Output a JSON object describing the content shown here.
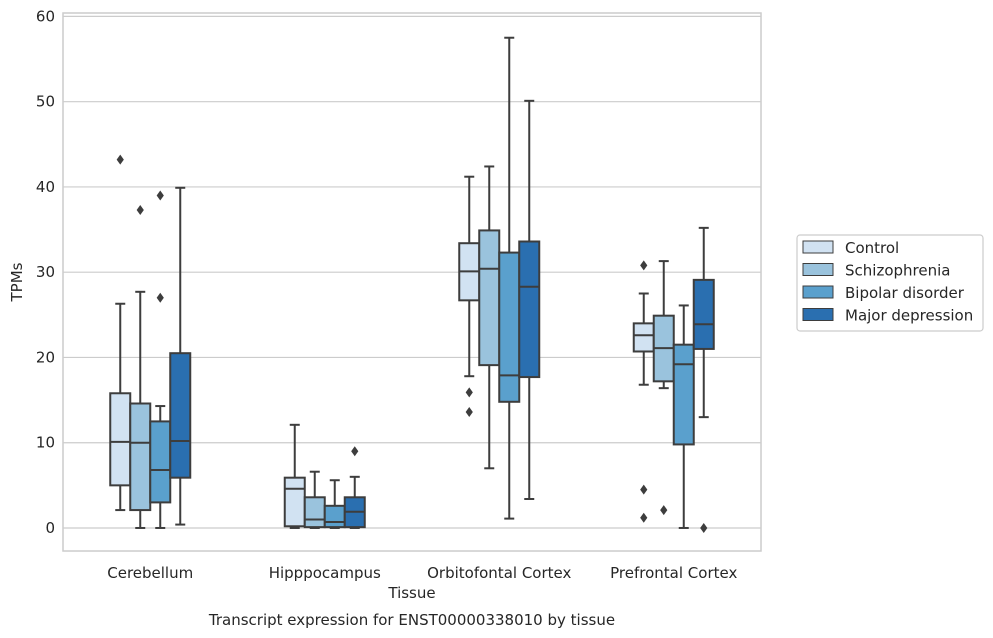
{
  "chart_data": {
    "type": "box",
    "xlabel": "Tissue",
    "ylabel": "TPMs",
    "caption": "Transcript expression for ENST00000338010 by tissue",
    "ylim": [
      -2.7,
      60.4
    ],
    "yticks": [
      0,
      10,
      20,
      30,
      40,
      50,
      60
    ],
    "grid": "horizontal",
    "legend_position": "right",
    "categories": [
      "Cerebellum",
      "Hipppocampus",
      "Orbitofontal Cortex",
      "Prefrontal Cortex"
    ],
    "series": [
      {
        "name": "Control",
        "color": "#d1e2f2",
        "boxes": [
          {
            "whislo": 2.1,
            "q1": 5.0,
            "med": 10.1,
            "q3": 15.8,
            "whishi": 26.3,
            "fliers": [
              43.2
            ]
          },
          {
            "whislo": 0.0,
            "q1": 0.2,
            "med": 4.6,
            "q3": 5.9,
            "whishi": 12.1,
            "fliers": []
          },
          {
            "whislo": 17.8,
            "q1": 26.7,
            "med": 30.1,
            "q3": 33.4,
            "whishi": 41.2,
            "fliers": [
              15.9,
              13.6
            ]
          },
          {
            "whislo": 16.8,
            "q1": 20.7,
            "med": 22.6,
            "q3": 24.0,
            "whishi": 27.5,
            "fliers": [
              30.8,
              4.5,
              1.2
            ]
          }
        ]
      },
      {
        "name": "Schizophrenia",
        "color": "#9ac3dd",
        "boxes": [
          {
            "whislo": 0.0,
            "q1": 2.1,
            "med": 10.0,
            "q3": 14.6,
            "whishi": 27.7,
            "fliers": [
              37.3
            ]
          },
          {
            "whislo": 0.0,
            "q1": 0.1,
            "med": 1.0,
            "q3": 3.6,
            "whishi": 6.6,
            "fliers": []
          },
          {
            "whislo": 7.0,
            "q1": 19.1,
            "med": 30.4,
            "q3": 34.9,
            "whishi": 42.4,
            "fliers": []
          },
          {
            "whislo": 16.4,
            "q1": 17.2,
            "med": 21.1,
            "q3": 24.9,
            "whishi": 31.3,
            "fliers": [
              2.1
            ]
          }
        ]
      },
      {
        "name": "Bipolar disorder",
        "color": "#5aa0cd",
        "boxes": [
          {
            "whislo": 0.0,
            "q1": 3.0,
            "med": 6.8,
            "q3": 12.5,
            "whishi": 14.3,
            "fliers": [
              39.0,
              27.0
            ]
          },
          {
            "whislo": 0.0,
            "q1": 0.1,
            "med": 0.7,
            "q3": 2.6,
            "whishi": 5.6,
            "fliers": []
          },
          {
            "whislo": 1.1,
            "q1": 14.8,
            "med": 17.9,
            "q3": 32.3,
            "whishi": 57.5,
            "fliers": []
          },
          {
            "whislo": 0.0,
            "q1": 9.8,
            "med": 19.2,
            "q3": 21.5,
            "whishi": 26.1,
            "fliers": []
          }
        ]
      },
      {
        "name": "Major depression",
        "color": "#2a6fb0",
        "boxes": [
          {
            "whislo": 0.4,
            "q1": 5.9,
            "med": 10.2,
            "q3": 20.5,
            "whishi": 39.9,
            "fliers": []
          },
          {
            "whislo": 0.0,
            "q1": 0.1,
            "med": 1.9,
            "q3": 3.6,
            "whishi": 6.0,
            "fliers": [
              9.0
            ]
          },
          {
            "whislo": 3.4,
            "q1": 17.7,
            "med": 28.3,
            "q3": 33.6,
            "whishi": 50.1,
            "fliers": []
          },
          {
            "whislo": 13.0,
            "q1": 21.0,
            "med": 23.9,
            "q3": 29.1,
            "whishi": 35.2,
            "fliers": [
              0.0
            ]
          }
        ]
      }
    ]
  }
}
